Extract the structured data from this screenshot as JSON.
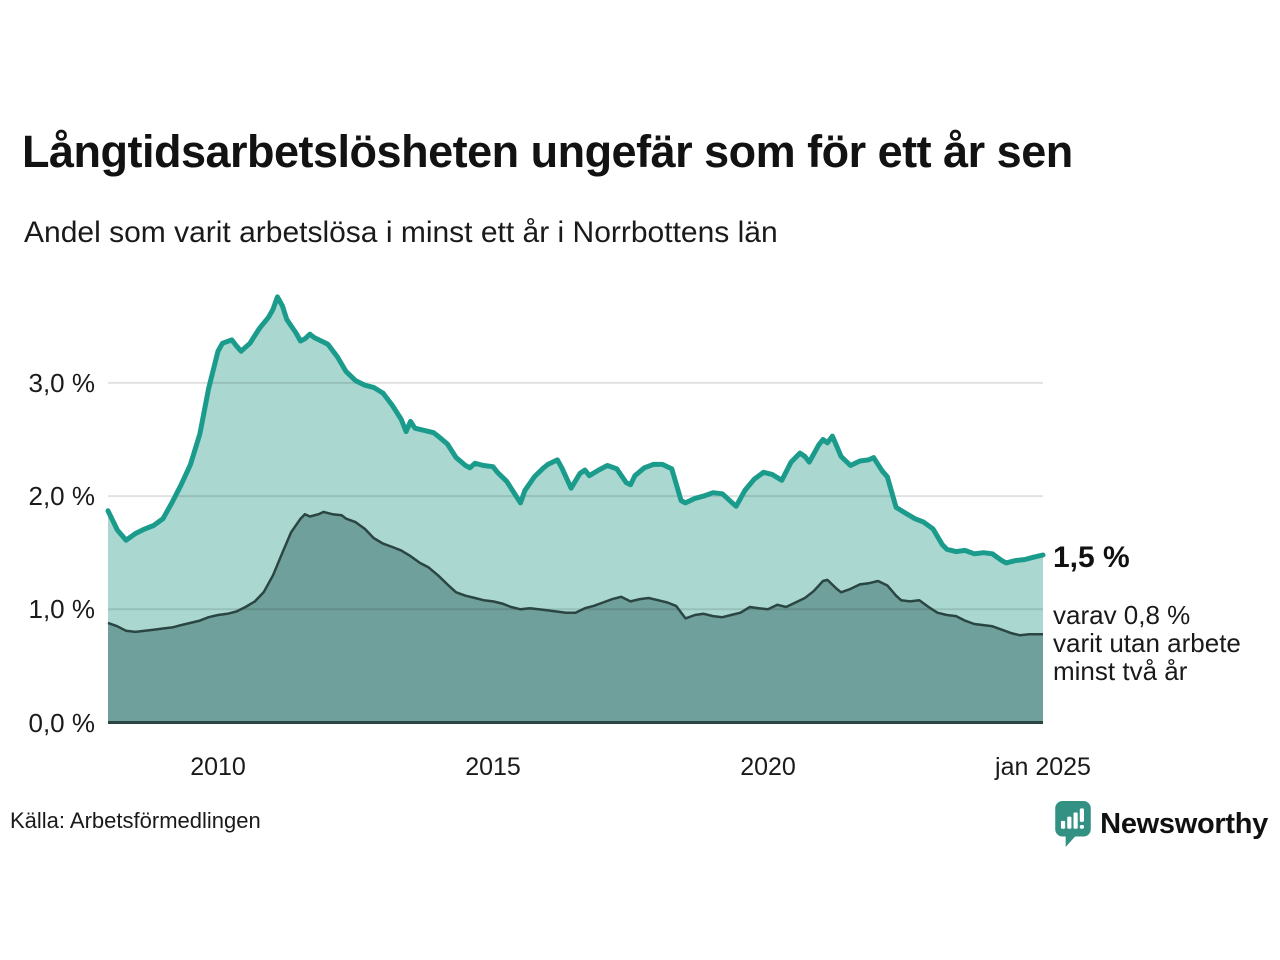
{
  "title": "Långtidsarbetslösheten ungefär som för ett år sen",
  "subtitle": "Andel som varit arbetslösa i minst ett år i Norrbottens län",
  "source": "Källa: Arbetsförmedlingen",
  "brand": {
    "name": "Newsworthy",
    "color": "#339183",
    "icon": "newsworthy-speech-bubble-chart-icon"
  },
  "annotations": {
    "latest_total": "1,5 %",
    "latest_detail_lines": [
      "varav 0,8 %",
      "varit utan arbete",
      "minst två år"
    ]
  },
  "colors": {
    "line_total": "#1b9b8c",
    "fill_total": "#aad8d1",
    "line_two_years": "#2b4642",
    "fill_two_years": "#70a09b",
    "gridline": "rgba(0,0,0,0.115)",
    "text": "#1a1a1a"
  },
  "chart_data": {
    "type": "area",
    "title": "Långtidsarbetslösheten ungefär som för ett år sen",
    "subtitle": "Andel som varit arbetslösa i minst ett år i Norrbottens län",
    "xlabel": "",
    "ylabel": "",
    "xlim": [
      2008.0,
      2025.05
    ],
    "ylim": [
      0,
      3.9
    ],
    "grid": "horizontal",
    "y_ticks": [
      {
        "value": 3.0,
        "label": "3,0 %"
      },
      {
        "value": 2.0,
        "label": "2,0 %"
      },
      {
        "value": 1.0,
        "label": "1,0 %"
      },
      {
        "value": 0.0,
        "label": "0,0 %"
      }
    ],
    "x_ticks": [
      {
        "value": 2010,
        "label": "2010"
      },
      {
        "value": 2015,
        "label": "2015"
      },
      {
        "value": 2020,
        "label": "2020"
      },
      {
        "value": 2025,
        "label": "jan 2025"
      }
    ],
    "series": [
      {
        "name": "Andel arbetslösa minst ett år",
        "latest_value_pct": 1.5,
        "points": [
          [
            2008.0,
            1.87
          ],
          [
            2008.17,
            1.7
          ],
          [
            2008.33,
            1.61
          ],
          [
            2008.5,
            1.67
          ],
          [
            2008.67,
            1.71
          ],
          [
            2008.83,
            1.74
          ],
          [
            2009.0,
            1.8
          ],
          [
            2009.17,
            1.95
          ],
          [
            2009.33,
            2.1
          ],
          [
            2009.5,
            2.28
          ],
          [
            2009.67,
            2.55
          ],
          [
            2009.83,
            2.95
          ],
          [
            2010.0,
            3.28
          ],
          [
            2010.08,
            3.35
          ],
          [
            2010.25,
            3.38
          ],
          [
            2010.33,
            3.33
          ],
          [
            2010.42,
            3.28
          ],
          [
            2010.58,
            3.35
          ],
          [
            2010.75,
            3.48
          ],
          [
            2010.92,
            3.58
          ],
          [
            2011.0,
            3.65
          ],
          [
            2011.08,
            3.76
          ],
          [
            2011.17,
            3.68
          ],
          [
            2011.25,
            3.56
          ],
          [
            2011.42,
            3.44
          ],
          [
            2011.5,
            3.37
          ],
          [
            2011.58,
            3.39
          ],
          [
            2011.67,
            3.43
          ],
          [
            2011.75,
            3.4
          ],
          [
            2011.92,
            3.36
          ],
          [
            2012.0,
            3.34
          ],
          [
            2012.17,
            3.23
          ],
          [
            2012.33,
            3.1
          ],
          [
            2012.5,
            3.02
          ],
          [
            2012.67,
            2.98
          ],
          [
            2012.83,
            2.96
          ],
          [
            2013.0,
            2.91
          ],
          [
            2013.17,
            2.8
          ],
          [
            2013.33,
            2.68
          ],
          [
            2013.42,
            2.57
          ],
          [
            2013.5,
            2.66
          ],
          [
            2013.58,
            2.6
          ],
          [
            2013.75,
            2.58
          ],
          [
            2013.92,
            2.56
          ],
          [
            2014.0,
            2.53
          ],
          [
            2014.17,
            2.46
          ],
          [
            2014.33,
            2.34
          ],
          [
            2014.5,
            2.27
          ],
          [
            2014.58,
            2.25
          ],
          [
            2014.67,
            2.29
          ],
          [
            2014.83,
            2.27
          ],
          [
            2015.0,
            2.26
          ],
          [
            2015.08,
            2.21
          ],
          [
            2015.25,
            2.13
          ],
          [
            2015.42,
            2.0
          ],
          [
            2015.5,
            1.94
          ],
          [
            2015.58,
            2.05
          ],
          [
            2015.75,
            2.17
          ],
          [
            2015.92,
            2.25
          ],
          [
            2016.0,
            2.28
          ],
          [
            2016.17,
            2.32
          ],
          [
            2016.25,
            2.25
          ],
          [
            2016.42,
            2.07
          ],
          [
            2016.58,
            2.2
          ],
          [
            2016.67,
            2.23
          ],
          [
            2016.75,
            2.18
          ],
          [
            2016.92,
            2.23
          ],
          [
            2017.08,
            2.27
          ],
          [
            2017.25,
            2.24
          ],
          [
            2017.42,
            2.12
          ],
          [
            2017.5,
            2.1
          ],
          [
            2017.58,
            2.18
          ],
          [
            2017.75,
            2.25
          ],
          [
            2017.92,
            2.28
          ],
          [
            2018.08,
            2.28
          ],
          [
            2018.25,
            2.24
          ],
          [
            2018.42,
            1.96
          ],
          [
            2018.5,
            1.94
          ],
          [
            2018.67,
            1.98
          ],
          [
            2018.83,
            2.0
          ],
          [
            2019.0,
            2.03
          ],
          [
            2019.17,
            2.02
          ],
          [
            2019.33,
            1.95
          ],
          [
            2019.42,
            1.91
          ],
          [
            2019.58,
            2.05
          ],
          [
            2019.75,
            2.15
          ],
          [
            2019.92,
            2.21
          ],
          [
            2020.08,
            2.19
          ],
          [
            2020.25,
            2.14
          ],
          [
            2020.42,
            2.3
          ],
          [
            2020.58,
            2.38
          ],
          [
            2020.67,
            2.35
          ],
          [
            2020.75,
            2.3
          ],
          [
            2020.92,
            2.45
          ],
          [
            2021.0,
            2.5
          ],
          [
            2021.08,
            2.47
          ],
          [
            2021.17,
            2.53
          ],
          [
            2021.33,
            2.35
          ],
          [
            2021.5,
            2.27
          ],
          [
            2021.67,
            2.31
          ],
          [
            2021.83,
            2.32
          ],
          [
            2021.92,
            2.34
          ],
          [
            2022.08,
            2.22
          ],
          [
            2022.17,
            2.17
          ],
          [
            2022.33,
            1.9
          ],
          [
            2022.5,
            1.85
          ],
          [
            2022.67,
            1.8
          ],
          [
            2022.83,
            1.77
          ],
          [
            2023.0,
            1.71
          ],
          [
            2023.17,
            1.57
          ],
          [
            2023.25,
            1.53
          ],
          [
            2023.42,
            1.51
          ],
          [
            2023.58,
            1.52
          ],
          [
            2023.75,
            1.49
          ],
          [
            2023.92,
            1.5
          ],
          [
            2024.08,
            1.49
          ],
          [
            2024.25,
            1.43
          ],
          [
            2024.33,
            1.41
          ],
          [
            2024.5,
            1.43
          ],
          [
            2024.67,
            1.44
          ],
          [
            2024.83,
            1.46
          ],
          [
            2025.0,
            1.48
          ]
        ]
      },
      {
        "name": "Varav utan arbete minst två år",
        "latest_value_pct": 0.8,
        "points": [
          [
            2008.0,
            0.88
          ],
          [
            2008.17,
            0.85
          ],
          [
            2008.33,
            0.81
          ],
          [
            2008.5,
            0.8
          ],
          [
            2008.67,
            0.81
          ],
          [
            2008.83,
            0.82
          ],
          [
            2009.0,
            0.83
          ],
          [
            2009.17,
            0.84
          ],
          [
            2009.33,
            0.86
          ],
          [
            2009.5,
            0.88
          ],
          [
            2009.67,
            0.9
          ],
          [
            2009.83,
            0.93
          ],
          [
            2010.0,
            0.95
          ],
          [
            2010.17,
            0.96
          ],
          [
            2010.33,
            0.98
          ],
          [
            2010.5,
            1.02
          ],
          [
            2010.67,
            1.07
          ],
          [
            2010.83,
            1.15
          ],
          [
            2011.0,
            1.3
          ],
          [
            2011.17,
            1.5
          ],
          [
            2011.33,
            1.68
          ],
          [
            2011.5,
            1.8
          ],
          [
            2011.58,
            1.84
          ],
          [
            2011.67,
            1.82
          ],
          [
            2011.83,
            1.84
          ],
          [
            2011.92,
            1.86
          ],
          [
            2012.08,
            1.84
          ],
          [
            2012.25,
            1.83
          ],
          [
            2012.33,
            1.8
          ],
          [
            2012.5,
            1.77
          ],
          [
            2012.67,
            1.71
          ],
          [
            2012.83,
            1.63
          ],
          [
            2013.0,
            1.58
          ],
          [
            2013.17,
            1.55
          ],
          [
            2013.33,
            1.52
          ],
          [
            2013.5,
            1.47
          ],
          [
            2013.67,
            1.41
          ],
          [
            2013.83,
            1.37
          ],
          [
            2014.0,
            1.3
          ],
          [
            2014.17,
            1.22
          ],
          [
            2014.33,
            1.15
          ],
          [
            2014.5,
            1.12
          ],
          [
            2014.67,
            1.1
          ],
          [
            2014.83,
            1.08
          ],
          [
            2015.0,
            1.07
          ],
          [
            2015.17,
            1.05
          ],
          [
            2015.33,
            1.02
          ],
          [
            2015.5,
            1.0
          ],
          [
            2015.67,
            1.01
          ],
          [
            2015.83,
            1.0
          ],
          [
            2016.0,
            0.99
          ],
          [
            2016.17,
            0.98
          ],
          [
            2016.33,
            0.97
          ],
          [
            2016.5,
            0.97
          ],
          [
            2016.67,
            1.01
          ],
          [
            2016.83,
            1.03
          ],
          [
            2017.0,
            1.06
          ],
          [
            2017.17,
            1.09
          ],
          [
            2017.33,
            1.11
          ],
          [
            2017.5,
            1.07
          ],
          [
            2017.67,
            1.09
          ],
          [
            2017.83,
            1.1
          ],
          [
            2018.0,
            1.08
          ],
          [
            2018.17,
            1.06
          ],
          [
            2018.33,
            1.03
          ],
          [
            2018.5,
            0.92
          ],
          [
            2018.67,
            0.95
          ],
          [
            2018.83,
            0.96
          ],
          [
            2019.0,
            0.94
          ],
          [
            2019.17,
            0.93
          ],
          [
            2019.33,
            0.95
          ],
          [
            2019.5,
            0.97
          ],
          [
            2019.67,
            1.02
          ],
          [
            2019.83,
            1.01
          ],
          [
            2020.0,
            1.0
          ],
          [
            2020.17,
            1.04
          ],
          [
            2020.33,
            1.02
          ],
          [
            2020.5,
            1.06
          ],
          [
            2020.67,
            1.1
          ],
          [
            2020.83,
            1.16
          ],
          [
            2021.0,
            1.25
          ],
          [
            2021.08,
            1.26
          ],
          [
            2021.25,
            1.18
          ],
          [
            2021.33,
            1.15
          ],
          [
            2021.5,
            1.18
          ],
          [
            2021.67,
            1.22
          ],
          [
            2021.83,
            1.23
          ],
          [
            2022.0,
            1.25
          ],
          [
            2022.17,
            1.21
          ],
          [
            2022.33,
            1.12
          ],
          [
            2022.42,
            1.08
          ],
          [
            2022.58,
            1.07
          ],
          [
            2022.75,
            1.08
          ],
          [
            2022.92,
            1.02
          ],
          [
            2023.08,
            0.97
          ],
          [
            2023.25,
            0.95
          ],
          [
            2023.42,
            0.94
          ],
          [
            2023.58,
            0.9
          ],
          [
            2023.75,
            0.87
          ],
          [
            2023.92,
            0.86
          ],
          [
            2024.08,
            0.85
          ],
          [
            2024.25,
            0.82
          ],
          [
            2024.42,
            0.79
          ],
          [
            2024.58,
            0.77
          ],
          [
            2024.75,
            0.78
          ],
          [
            2024.92,
            0.78
          ],
          [
            2025.0,
            0.78
          ]
        ]
      }
    ]
  }
}
